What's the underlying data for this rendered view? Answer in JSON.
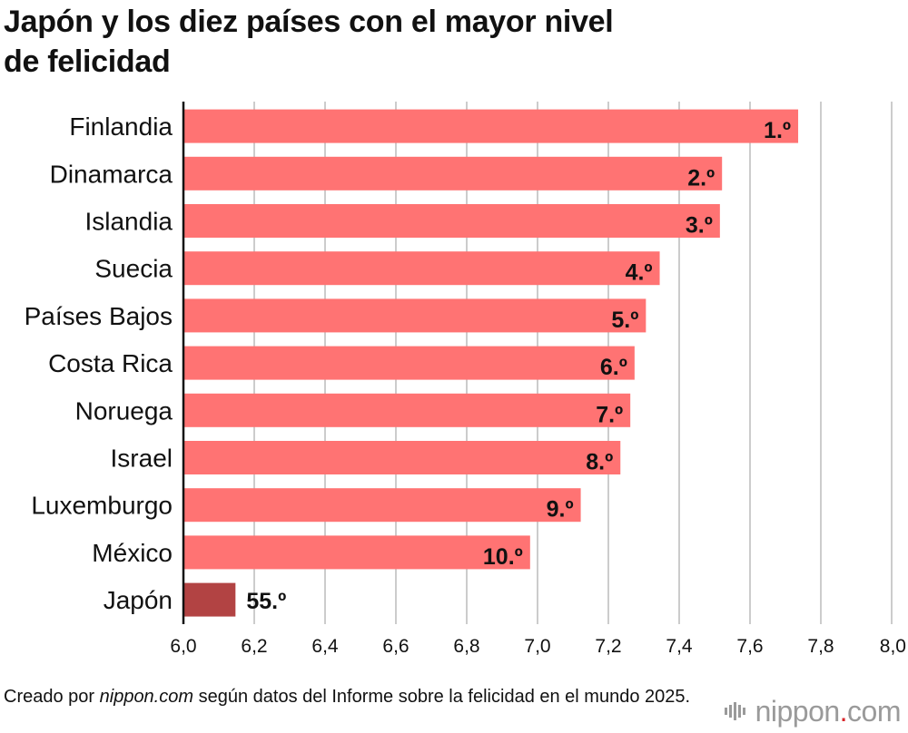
{
  "title": {
    "line1": "Japón y los diez países con el mayor nivel",
    "line2": "de felicidad"
  },
  "colors": {
    "bar": "#ff7373",
    "highlight": "#b24343",
    "grid": "#cccccc",
    "axis": "#111111"
  },
  "chart_data": {
    "type": "bar",
    "orientation": "horizontal",
    "title": "Japón y los diez países con el mayor nivel de felicidad",
    "categories": [
      "Finlandia",
      "Dinamarca",
      "Islandia",
      "Suecia",
      "Países Bajos",
      "Costa Rica",
      "Noruega",
      "Israel",
      "Luxemburgo",
      "México",
      "Japón"
    ],
    "values": [
      7.736,
      7.521,
      7.515,
      7.345,
      7.306,
      7.274,
      7.262,
      7.234,
      7.122,
      6.979,
      6.147
    ],
    "labels": [
      "1.º",
      "2.º",
      "3.º",
      "4.º",
      "5.º",
      "6.º",
      "7.º",
      "8.º",
      "9.º",
      "10.º",
      "55.º"
    ],
    "highlight": "Japón",
    "xlim": [
      6.0,
      8.0
    ],
    "xticks": [
      "6,0",
      "6,2",
      "6,4",
      "6,6",
      "6,8",
      "7,0",
      "7,2",
      "7,4",
      "7,6",
      "7,8",
      "8,0"
    ],
    "xlabel": "",
    "ylabel": "",
    "grid": true
  },
  "footer": {
    "prefix": "Creado por ",
    "source": "nippon.com",
    "suffix": " según datos del Informe sobre la felicidad en el mundo 2025."
  },
  "logo": {
    "name": "nippon",
    "dot": ".",
    "tld": "com"
  }
}
